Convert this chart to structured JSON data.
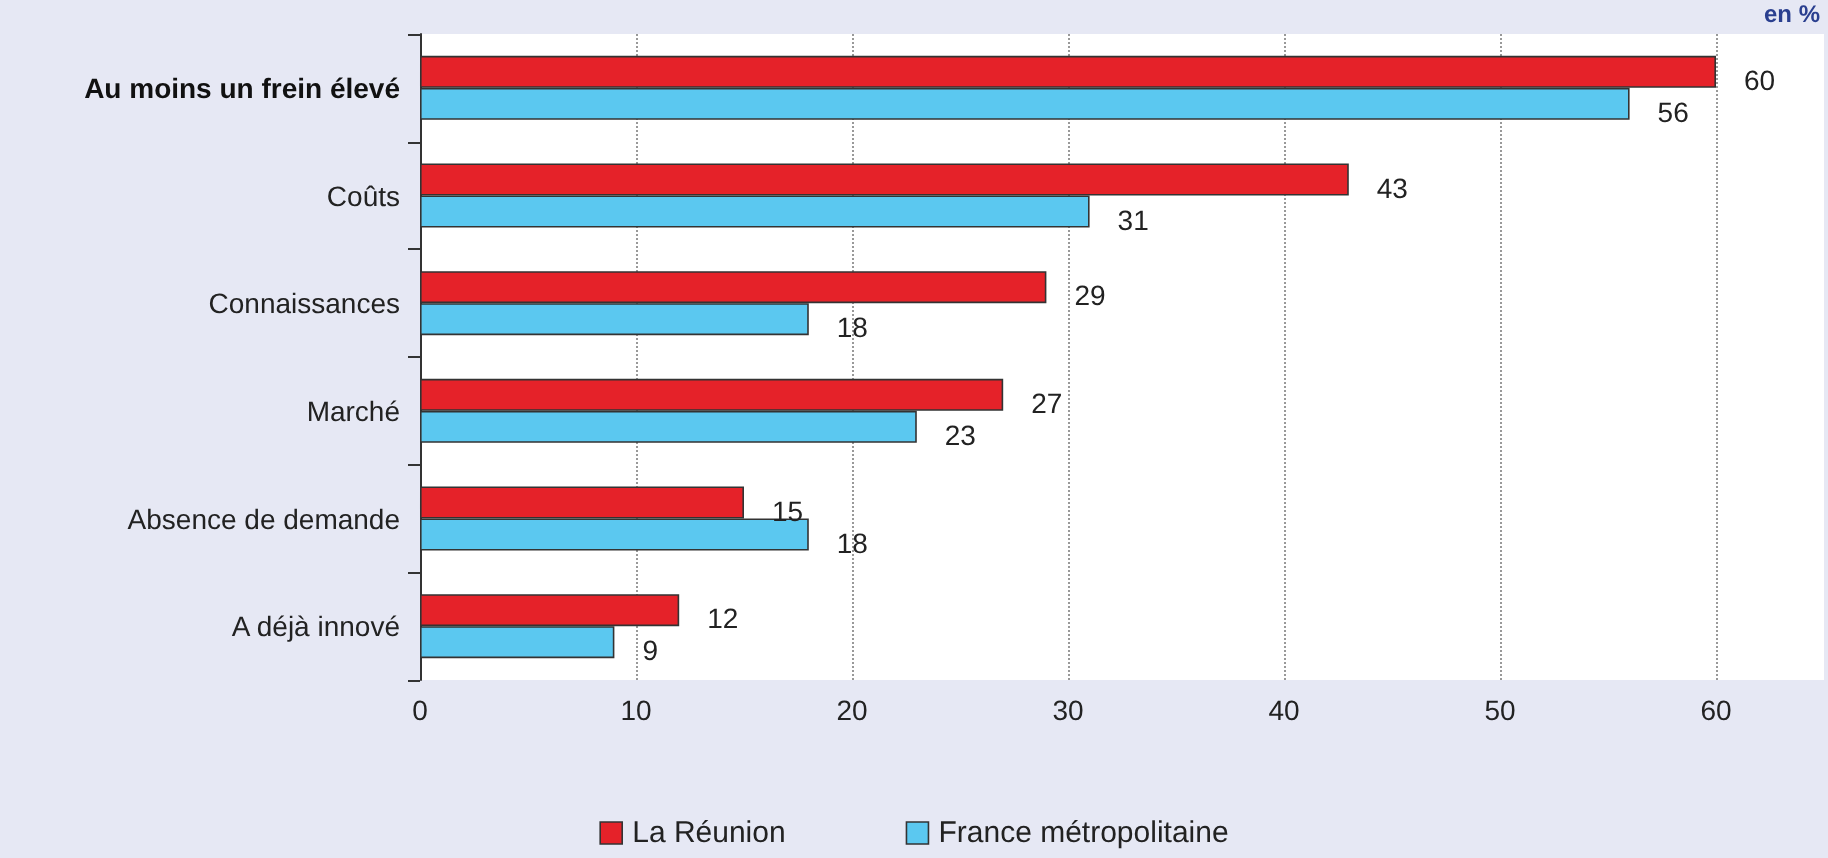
{
  "chart_data": {
    "type": "bar",
    "orientation": "horizontal",
    "categories": [
      "Au moins un frein élevé",
      "Coûts",
      "Connaissances",
      "Marché",
      "Absence de demande",
      "A déjà innové"
    ],
    "series": [
      {
        "name": "La Réunion",
        "color": "#e52229",
        "values": [
          60,
          43,
          29,
          27,
          15,
          12
        ]
      },
      {
        "name": "France métropolitaine",
        "color": "#5bc8f0",
        "values": [
          56,
          31,
          18,
          23,
          18,
          9
        ]
      }
    ],
    "xlim": [
      0,
      65
    ],
    "xticks": [
      0,
      10,
      20,
      30,
      40,
      50,
      60
    ],
    "grid": "x",
    "legend": "bottom",
    "data_labels": true,
    "annotations": [
      "en %"
    ]
  }
}
